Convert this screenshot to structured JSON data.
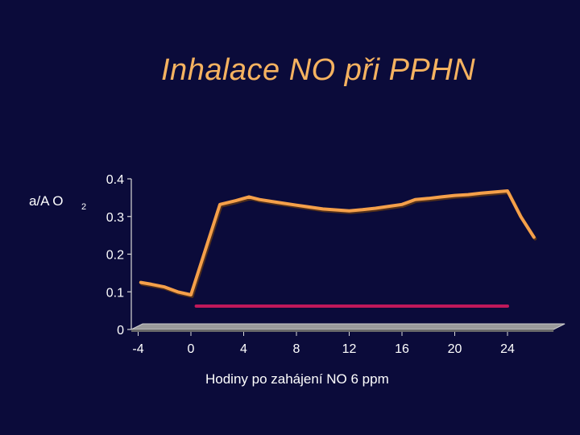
{
  "title": "Inhalace NO při PPHN",
  "chart_data": {
    "type": "line",
    "title": "Inhalace NO při PPHN",
    "ylabel": "a/A O",
    "ylabel_subscript": "2",
    "xlabel": "Hodiny po zahájení NO 6 ppm",
    "xlim": [
      -4,
      27
    ],
    "ylim": [
      0,
      0.4
    ],
    "x_ticks": [
      -4,
      0,
      4,
      8,
      12,
      16,
      20,
      24
    ],
    "y_ticks": [
      0,
      0.1,
      0.2,
      0.3,
      0.4
    ],
    "y_tick_labels": [
      "0",
      "0.1",
      "0.2",
      "0.3",
      "0.4"
    ],
    "grid": false,
    "legend": "none",
    "floor_3d": true,
    "series": [
      {
        "color": "#f5a04a",
        "x": [
          -3.8,
          -3,
          -2,
          -1,
          0,
          2.2,
          3.4,
          4.4,
          5.2,
          6.5,
          8,
          10,
          12,
          13,
          14,
          15,
          16,
          17,
          18,
          19,
          20,
          21,
          22,
          23,
          24,
          25,
          26
        ],
        "y": [
          0.125,
          0.12,
          0.113,
          0.1,
          0.092,
          0.332,
          0.342,
          0.352,
          0.345,
          0.338,
          0.33,
          0.32,
          0.315,
          0.318,
          0.322,
          0.327,
          0.332,
          0.345,
          0.348,
          0.352,
          0.356,
          0.358,
          0.362,
          0.365,
          0.368,
          0.3,
          0.245
        ]
      },
      {
        "color": "#c0185a",
        "x": [
          0.4,
          24
        ],
        "y": [
          0.062,
          0.062
        ]
      }
    ]
  }
}
